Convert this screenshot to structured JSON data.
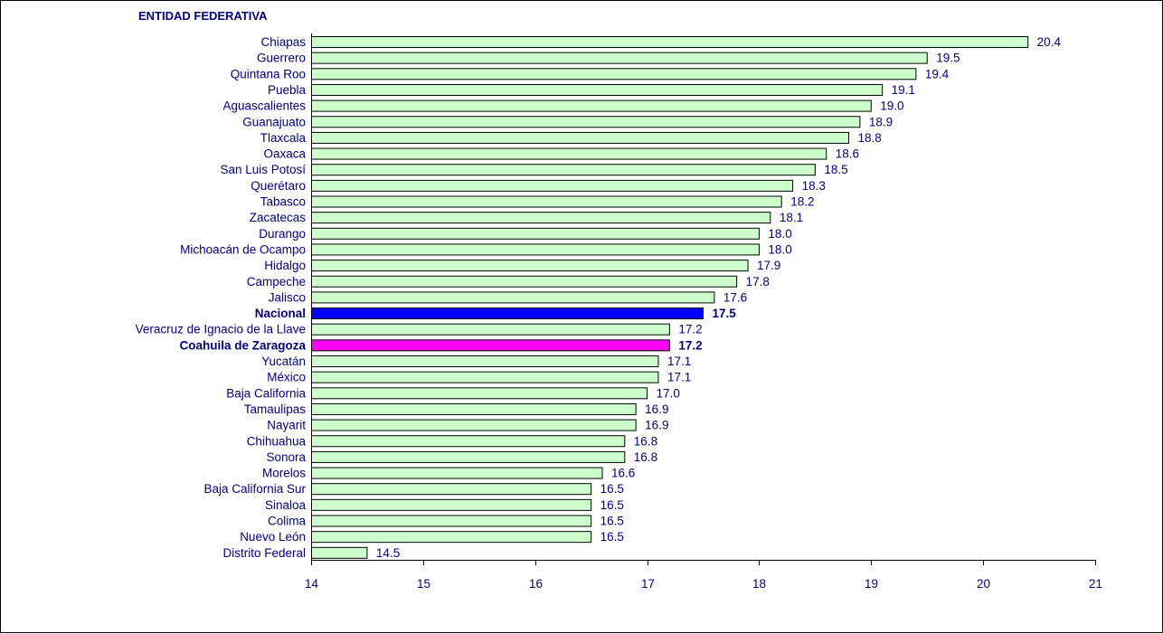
{
  "chart_data": {
    "type": "bar",
    "orientation": "horizontal",
    "title": "ENTIDAD FEDERATIVA",
    "xlim": [
      14,
      21
    ],
    "xticks": [
      14,
      15,
      16,
      17,
      18,
      19,
      20,
      21
    ],
    "grid": false,
    "categories": [
      "Chiapas",
      "Guerrero",
      "Quintana Roo",
      "Puebla",
      "Aguascalientes",
      "Guanajuato",
      "Tlaxcala",
      "Oaxaca",
      "San Luis Potosí",
      "Querétaro",
      "Tabasco",
      "Zacatecas",
      "Durango",
      "Michoacán de Ocampo",
      "Hidalgo",
      "Campeche",
      "Jalisco",
      "Nacional",
      "Veracruz de Ignacio de la Llave",
      "Coahuila de Zaragoza",
      "Yucatán",
      "México",
      "Baja California",
      "Tamaulipas",
      "Nayarit",
      "Chihuahua",
      "Sonora",
      "Morelos",
      "Baja California Sur",
      "Sinaloa",
      "Colima",
      "Nuevo León",
      "Distrito Federal"
    ],
    "values": [
      20.4,
      19.5,
      19.4,
      19.1,
      19.0,
      18.9,
      18.8,
      18.6,
      18.5,
      18.3,
      18.2,
      18.1,
      18.0,
      18.0,
      17.9,
      17.8,
      17.6,
      17.5,
      17.2,
      17.2,
      17.1,
      17.1,
      17.0,
      16.9,
      16.9,
      16.8,
      16.8,
      16.6,
      16.5,
      16.5,
      16.5,
      16.5,
      14.5
    ],
    "value_labels": [
      "20.4",
      "19.5",
      "19.4",
      "19.1",
      "19.0",
      "18.9",
      "18.8",
      "18.6",
      "18.5",
      "18.3",
      "18.2",
      "18.1",
      "18.0",
      "18.0",
      "17.9",
      "17.8",
      "17.6",
      "17.5",
      "17.2",
      "17.2",
      "17.1",
      "17.1",
      "17.0",
      "16.9",
      "16.9",
      "16.8",
      "16.8",
      "16.6",
      "16.5",
      "16.5",
      "16.5",
      "16.5",
      "14.5"
    ],
    "highlights": {
      "Nacional": "#0000ff",
      "Coahuila de Zaragoza": "#ff00ff"
    },
    "colors": {
      "bar": "#ccffcc",
      "bar_border": "#000000",
      "text": "#000080",
      "axis": "#000000"
    }
  }
}
